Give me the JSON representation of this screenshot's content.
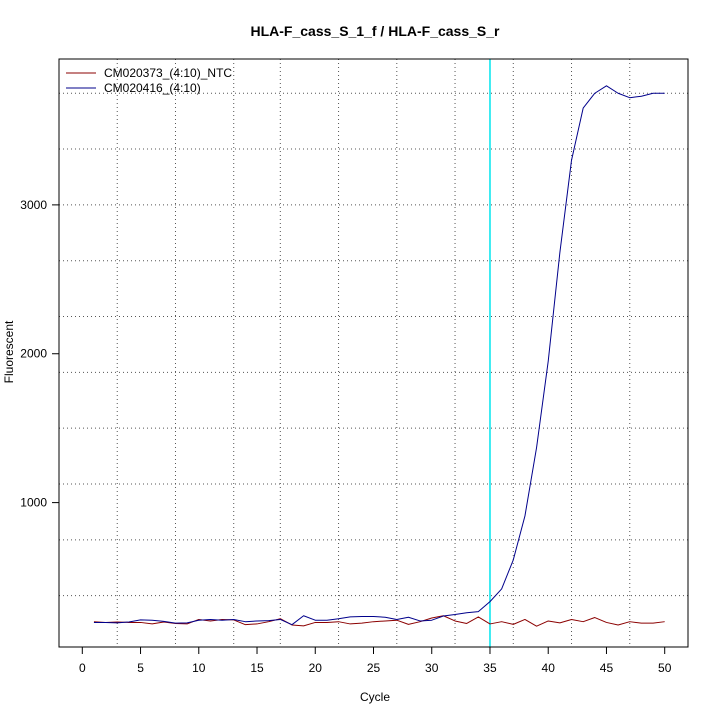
{
  "chart_data": {
    "type": "line",
    "title": "HLA-F_cass_S_1_f / HLA-F_cass_S_r",
    "xlabel": "Cycle",
    "ylabel": "Fluorescent",
    "xlim": [
      -2,
      52
    ],
    "ylim": [
      30,
      3980
    ],
    "x_ticks": [
      0,
      5,
      10,
      15,
      20,
      25,
      30,
      35,
      40,
      45,
      50
    ],
    "y_ticks": [
      1000,
      2000,
      3000
    ],
    "x_grid": [
      3,
      8,
      13,
      17,
      22,
      27,
      32,
      37,
      42,
      47
    ],
    "y_grid": [
      375,
      750,
      1125,
      1500,
      1875,
      2250,
      2625,
      3000,
      3375,
      3750
    ],
    "grid": true,
    "legend_position": "top-left",
    "threshold": {
      "axis": "x",
      "value": 35,
      "color": "#00e5ee"
    },
    "x": [
      1,
      2,
      3,
      4,
      5,
      6,
      7,
      8,
      9,
      10,
      11,
      12,
      13,
      14,
      15,
      16,
      17,
      18,
      19,
      20,
      21,
      22,
      23,
      24,
      25,
      26,
      27,
      28,
      29,
      30,
      31,
      32,
      33,
      34,
      35,
      36,
      37,
      38,
      39,
      40,
      41,
      42,
      43,
      44,
      45,
      46,
      47,
      48,
      49,
      50
    ],
    "series": [
      {
        "name": "CM020373_(4:10)_NTC",
        "color": "#8b0000",
        "values": [
          200,
          195,
          198,
          195,
          195,
          185,
          198,
          188,
          185,
          215,
          205,
          215,
          212,
          180,
          185,
          200,
          220,
          178,
          172,
          195,
          195,
          200,
          185,
          190,
          200,
          205,
          210,
          182,
          200,
          225,
          240,
          205,
          188,
          232,
          185,
          200,
          182,
          215,
          170,
          205,
          192,
          215,
          200,
          228,
          195,
          178,
          200,
          190,
          190,
          200
        ]
      },
      {
        "name": "CM020416_(4:10)",
        "color": "#00008b",
        "values": [
          195,
          195,
          192,
          198,
          212,
          210,
          202,
          190,
          192,
          210,
          215,
          210,
          215,
          200,
          205,
          207,
          215,
          180,
          240,
          210,
          210,
          220,
          232,
          235,
          235,
          230,
          215,
          230,
          205,
          210,
          238,
          248,
          260,
          268,
          335,
          420,
          615,
          910,
          1370,
          1950,
          2680,
          3300,
          3650,
          3750,
          3800,
          3750,
          3720,
          3730,
          3750,
          3750
        ]
      }
    ]
  }
}
